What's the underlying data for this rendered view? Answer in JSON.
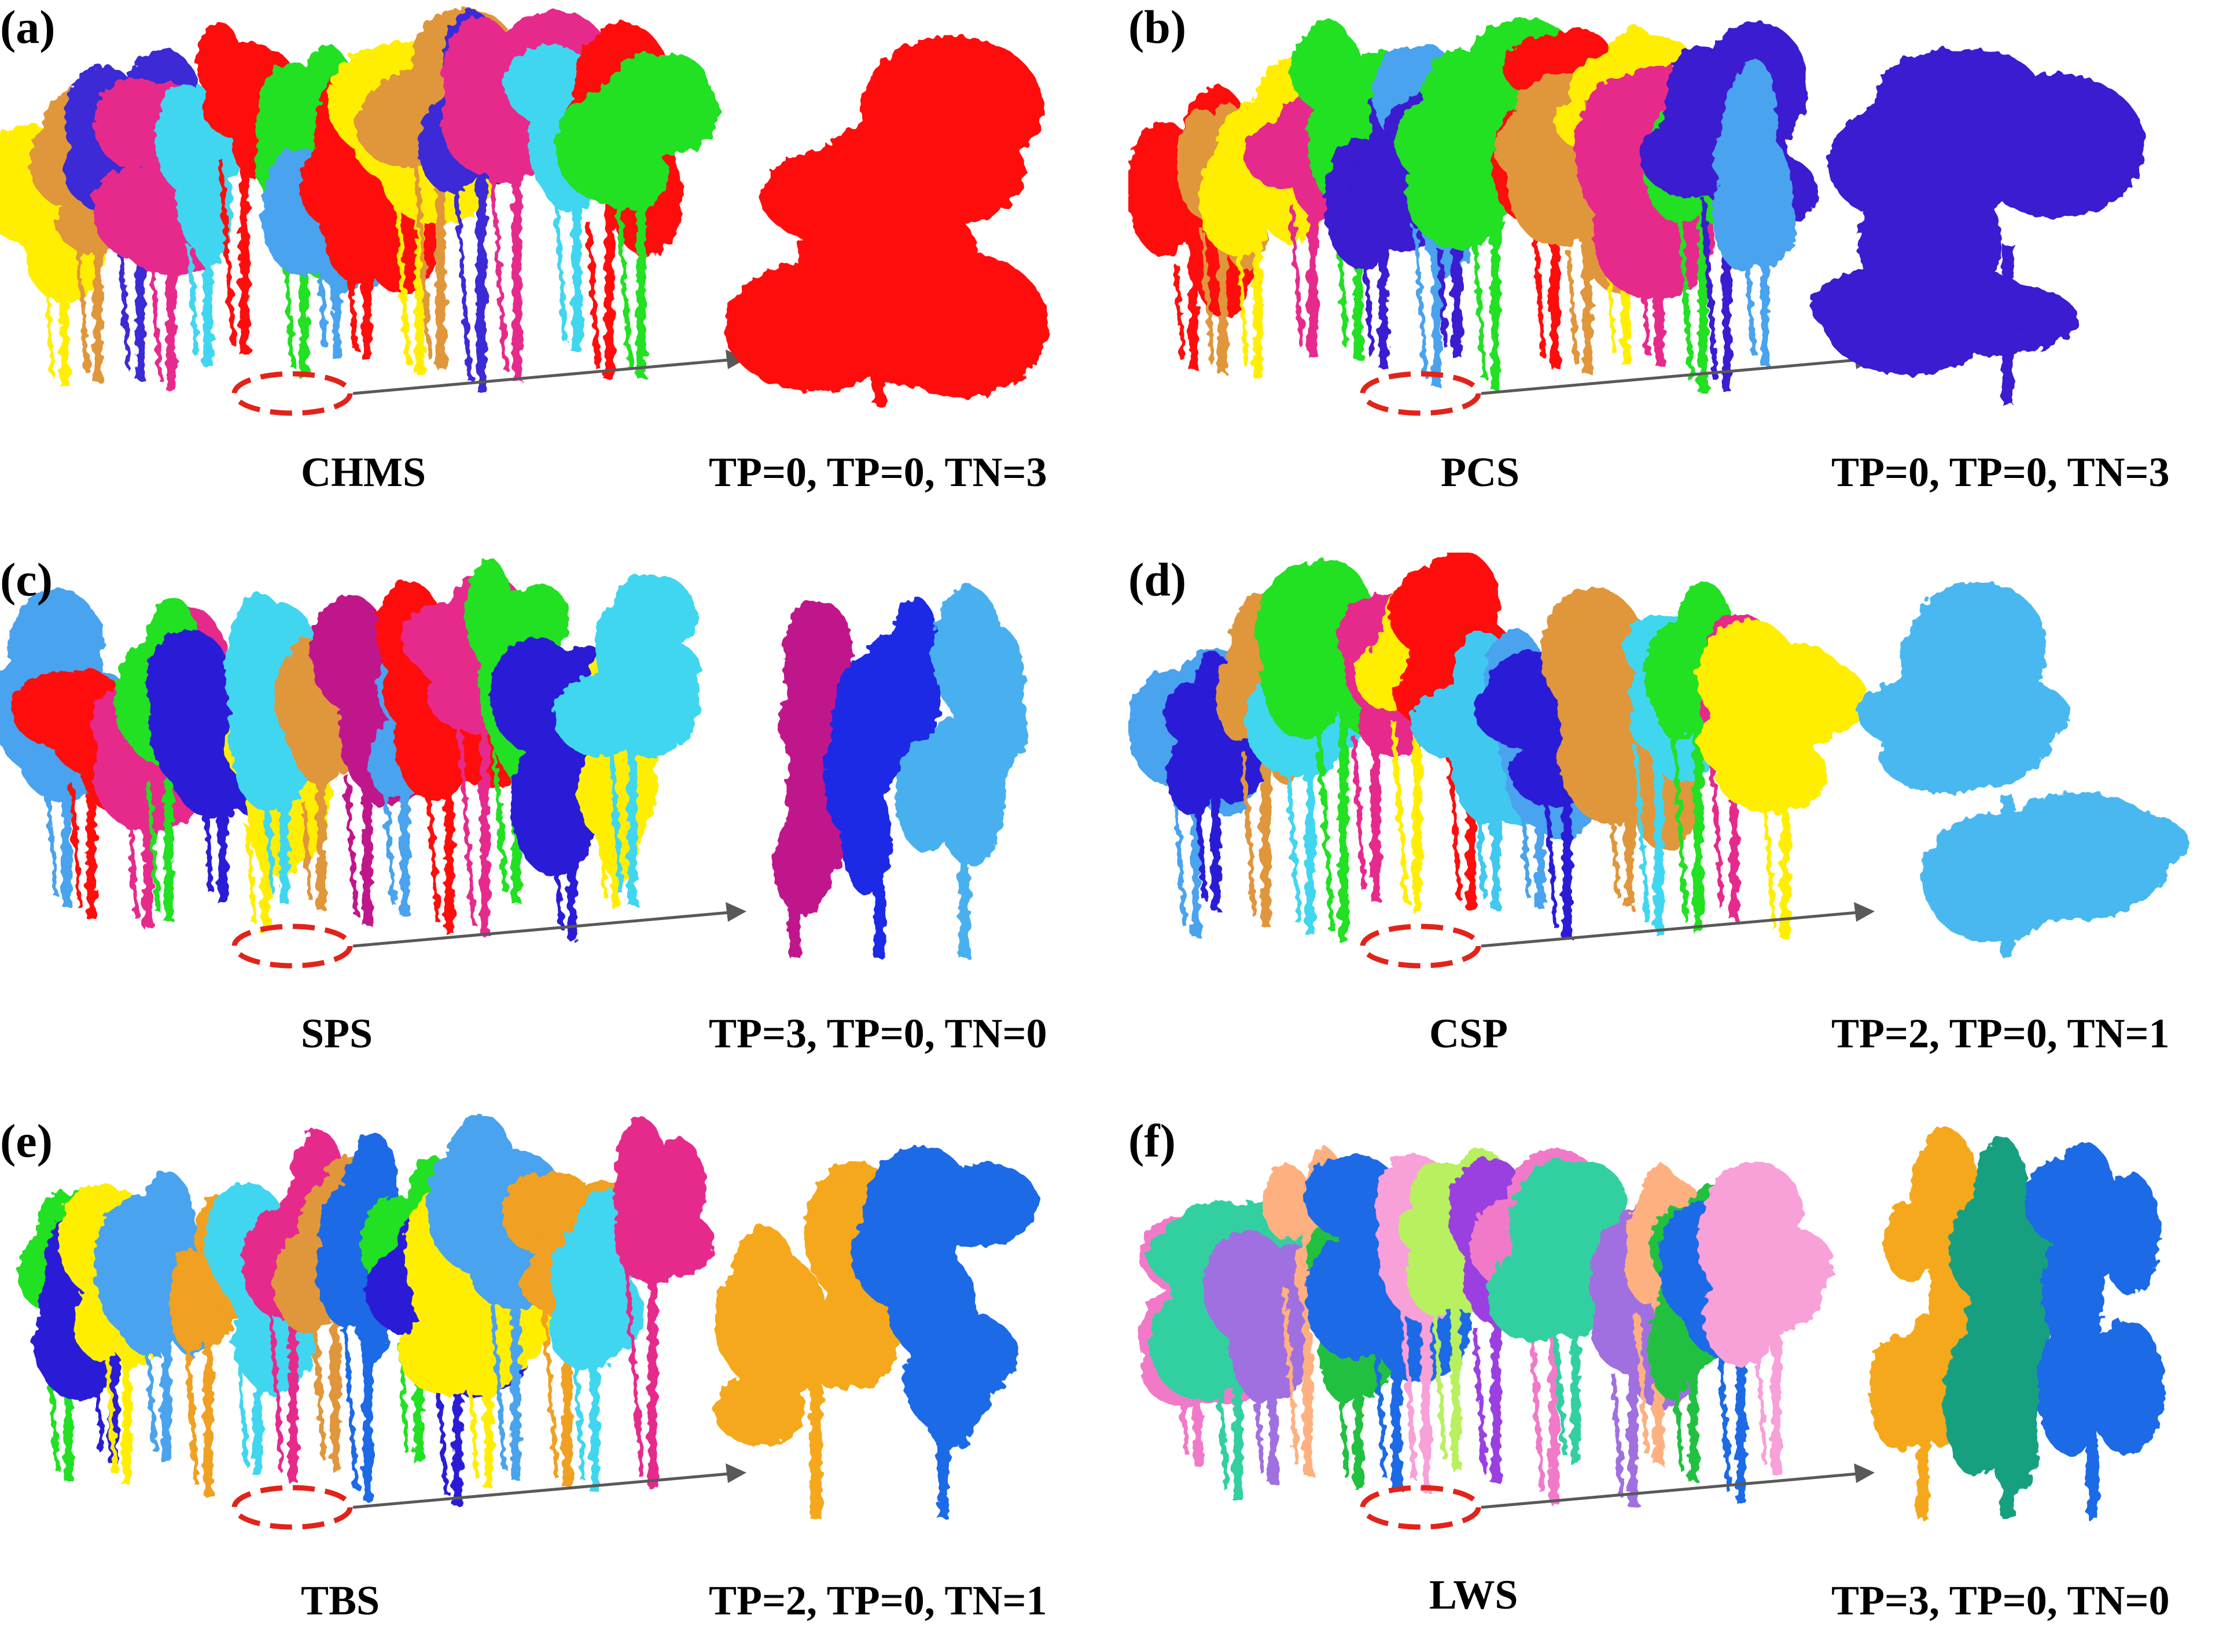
{
  "panels": [
    {
      "id": "a",
      "label": "(a)",
      "method": "CHMS",
      "stats": "TP=0, TP=0, TN=3",
      "palette": [
        "#ffee00",
        "#e0963a",
        "#3a2ad6",
        "#e62a8c",
        "#40d6f0",
        "#ff0a0a",
        "#22e022",
        "#4aa3ee",
        "#ff0a0a"
      ],
      "zoom_colors": [
        "#ff0a0a"
      ]
    },
    {
      "id": "b",
      "label": "(b)",
      "method": "PCS",
      "stats": "TP=0, TP=0, TN=3",
      "palette": [
        "#ff0a0a",
        "#e0963a",
        "#ffee00",
        "#e62a8c",
        "#22e022",
        "#3a1ad0",
        "#4aa3ee",
        "#3a1ad0",
        "#22e022"
      ],
      "zoom_colors": [
        "#3a1ad0"
      ]
    },
    {
      "id": "c",
      "label": "(c)",
      "method": "SPS",
      "stats": "TP=3, TP=0, TN=0",
      "palette": [
        "#4aa3ee",
        "#ff0a0a",
        "#e62a8c",
        "#22e022",
        "#2a1ad6",
        "#ffee00",
        "#40d6f0",
        "#e0963a",
        "#c0188c"
      ],
      "zoom_colors": [
        "#c0188c",
        "#1a2ae6",
        "#4ab0f0"
      ]
    },
    {
      "id": "d",
      "label": "(d)",
      "method": "CSP",
      "stats": "TP=2, TP=0, TN=1",
      "palette": [
        "#4aa3ee",
        "#2a1ad6",
        "#e0963a",
        "#40d6f0",
        "#22e022",
        "#e62a8c",
        "#ffee00",
        "#ff0a0a",
        "#40c8f0"
      ],
      "zoom_colors": [
        "#4ab8f0"
      ]
    },
    {
      "id": "e",
      "label": "(e)",
      "method": "TBS",
      "stats": "TP=2, TP=0, TN=1",
      "palette": [
        "#22e022",
        "#2a1ad6",
        "#ffee00",
        "#4aa3ee",
        "#f0a020",
        "#40d6f0",
        "#e62a8c",
        "#e0963a",
        "#1a6ae6"
      ],
      "zoom_colors": [
        "#f5a81a",
        "#1a6ae6"
      ]
    },
    {
      "id": "f",
      "label": "(f)",
      "method": "LWS",
      "stats": "TP=3, TP=0, TN=0",
      "palette": [
        "#f07ac8",
        "#30d0a0",
        "#a070e0",
        "#ffb080",
        "#20c040",
        "#1a6ae6",
        "#f8a0d8",
        "#b8f060",
        "#9a40e0"
      ],
      "zoom_colors": [
        "#f5a81a",
        "#18a080",
        "#1a6ae6"
      ]
    }
  ]
}
